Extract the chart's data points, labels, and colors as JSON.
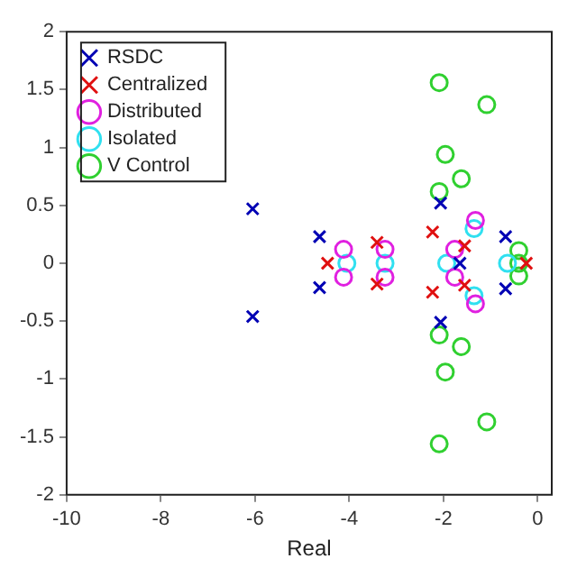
{
  "chart_data": {
    "type": "scatter",
    "xlabel": "Real",
    "xlim": [
      -10,
      0.3
    ],
    "xticks": [
      -10,
      -8,
      -6,
      -4,
      -2,
      0
    ],
    "ylim": [
      -2,
      2
    ],
    "yticks": [
      -2,
      -1.5,
      -1,
      -0.5,
      0,
      0.5,
      1,
      1.5,
      2
    ],
    "grid": false,
    "legend": "top left",
    "series": [
      {
        "name": "RSDC",
        "color": "#0000b4",
        "marker": "cross",
        "x": [
          -6.05,
          -6.05,
          -4.63,
          -4.63,
          -2.06,
          -2.06,
          -1.65,
          -0.68,
          -0.68
        ],
        "values": [
          0.47,
          -0.46,
          0.23,
          -0.21,
          0.52,
          -0.51,
          0,
          0.23,
          -0.22
        ]
      },
      {
        "name": "Centralized",
        "color": "#e01010",
        "marker": "cross",
        "x": [
          -4.46,
          -3.41,
          -3.41,
          -2.23,
          -2.23,
          -1.55,
          -1.55,
          -0.24
        ],
        "values": [
          0,
          0.18,
          -0.18,
          0.27,
          -0.25,
          0.15,
          -0.19,
          0
        ]
      },
      {
        "name": "Distributed",
        "color": "#e020e0",
        "marker": "circle",
        "x": [
          -4.12,
          -4.12,
          -3.24,
          -3.24,
          -1.76,
          -1.76,
          -1.32,
          -1.32
        ],
        "values": [
          0.12,
          -0.12,
          0.12,
          -0.12,
          0.12,
          -0.12,
          0.37,
          -0.35
        ]
      },
      {
        "name": "Isolated",
        "color": "#30e0f0",
        "marker": "circle",
        "x": [
          -4.05,
          -3.24,
          -1.93,
          -1.35,
          -1.35,
          -0.64
        ],
        "values": [
          0,
          0,
          0,
          0.3,
          -0.28,
          0
        ]
      },
      {
        "name": "V Control",
        "color": "#30d030",
        "marker": "circle",
        "x": [
          -2.09,
          -1.08,
          -1.96,
          -1.62,
          -2.09,
          -2.09,
          -1.62,
          -1.96,
          -1.08,
          -2.09,
          -0.4,
          -0.4,
          -0.4
        ],
        "values": [
          1.56,
          1.37,
          0.94,
          0.73,
          0.62,
          -0.62,
          -0.72,
          -0.94,
          -1.37,
          -1.56,
          0,
          0.11,
          -0.11
        ]
      }
    ]
  }
}
